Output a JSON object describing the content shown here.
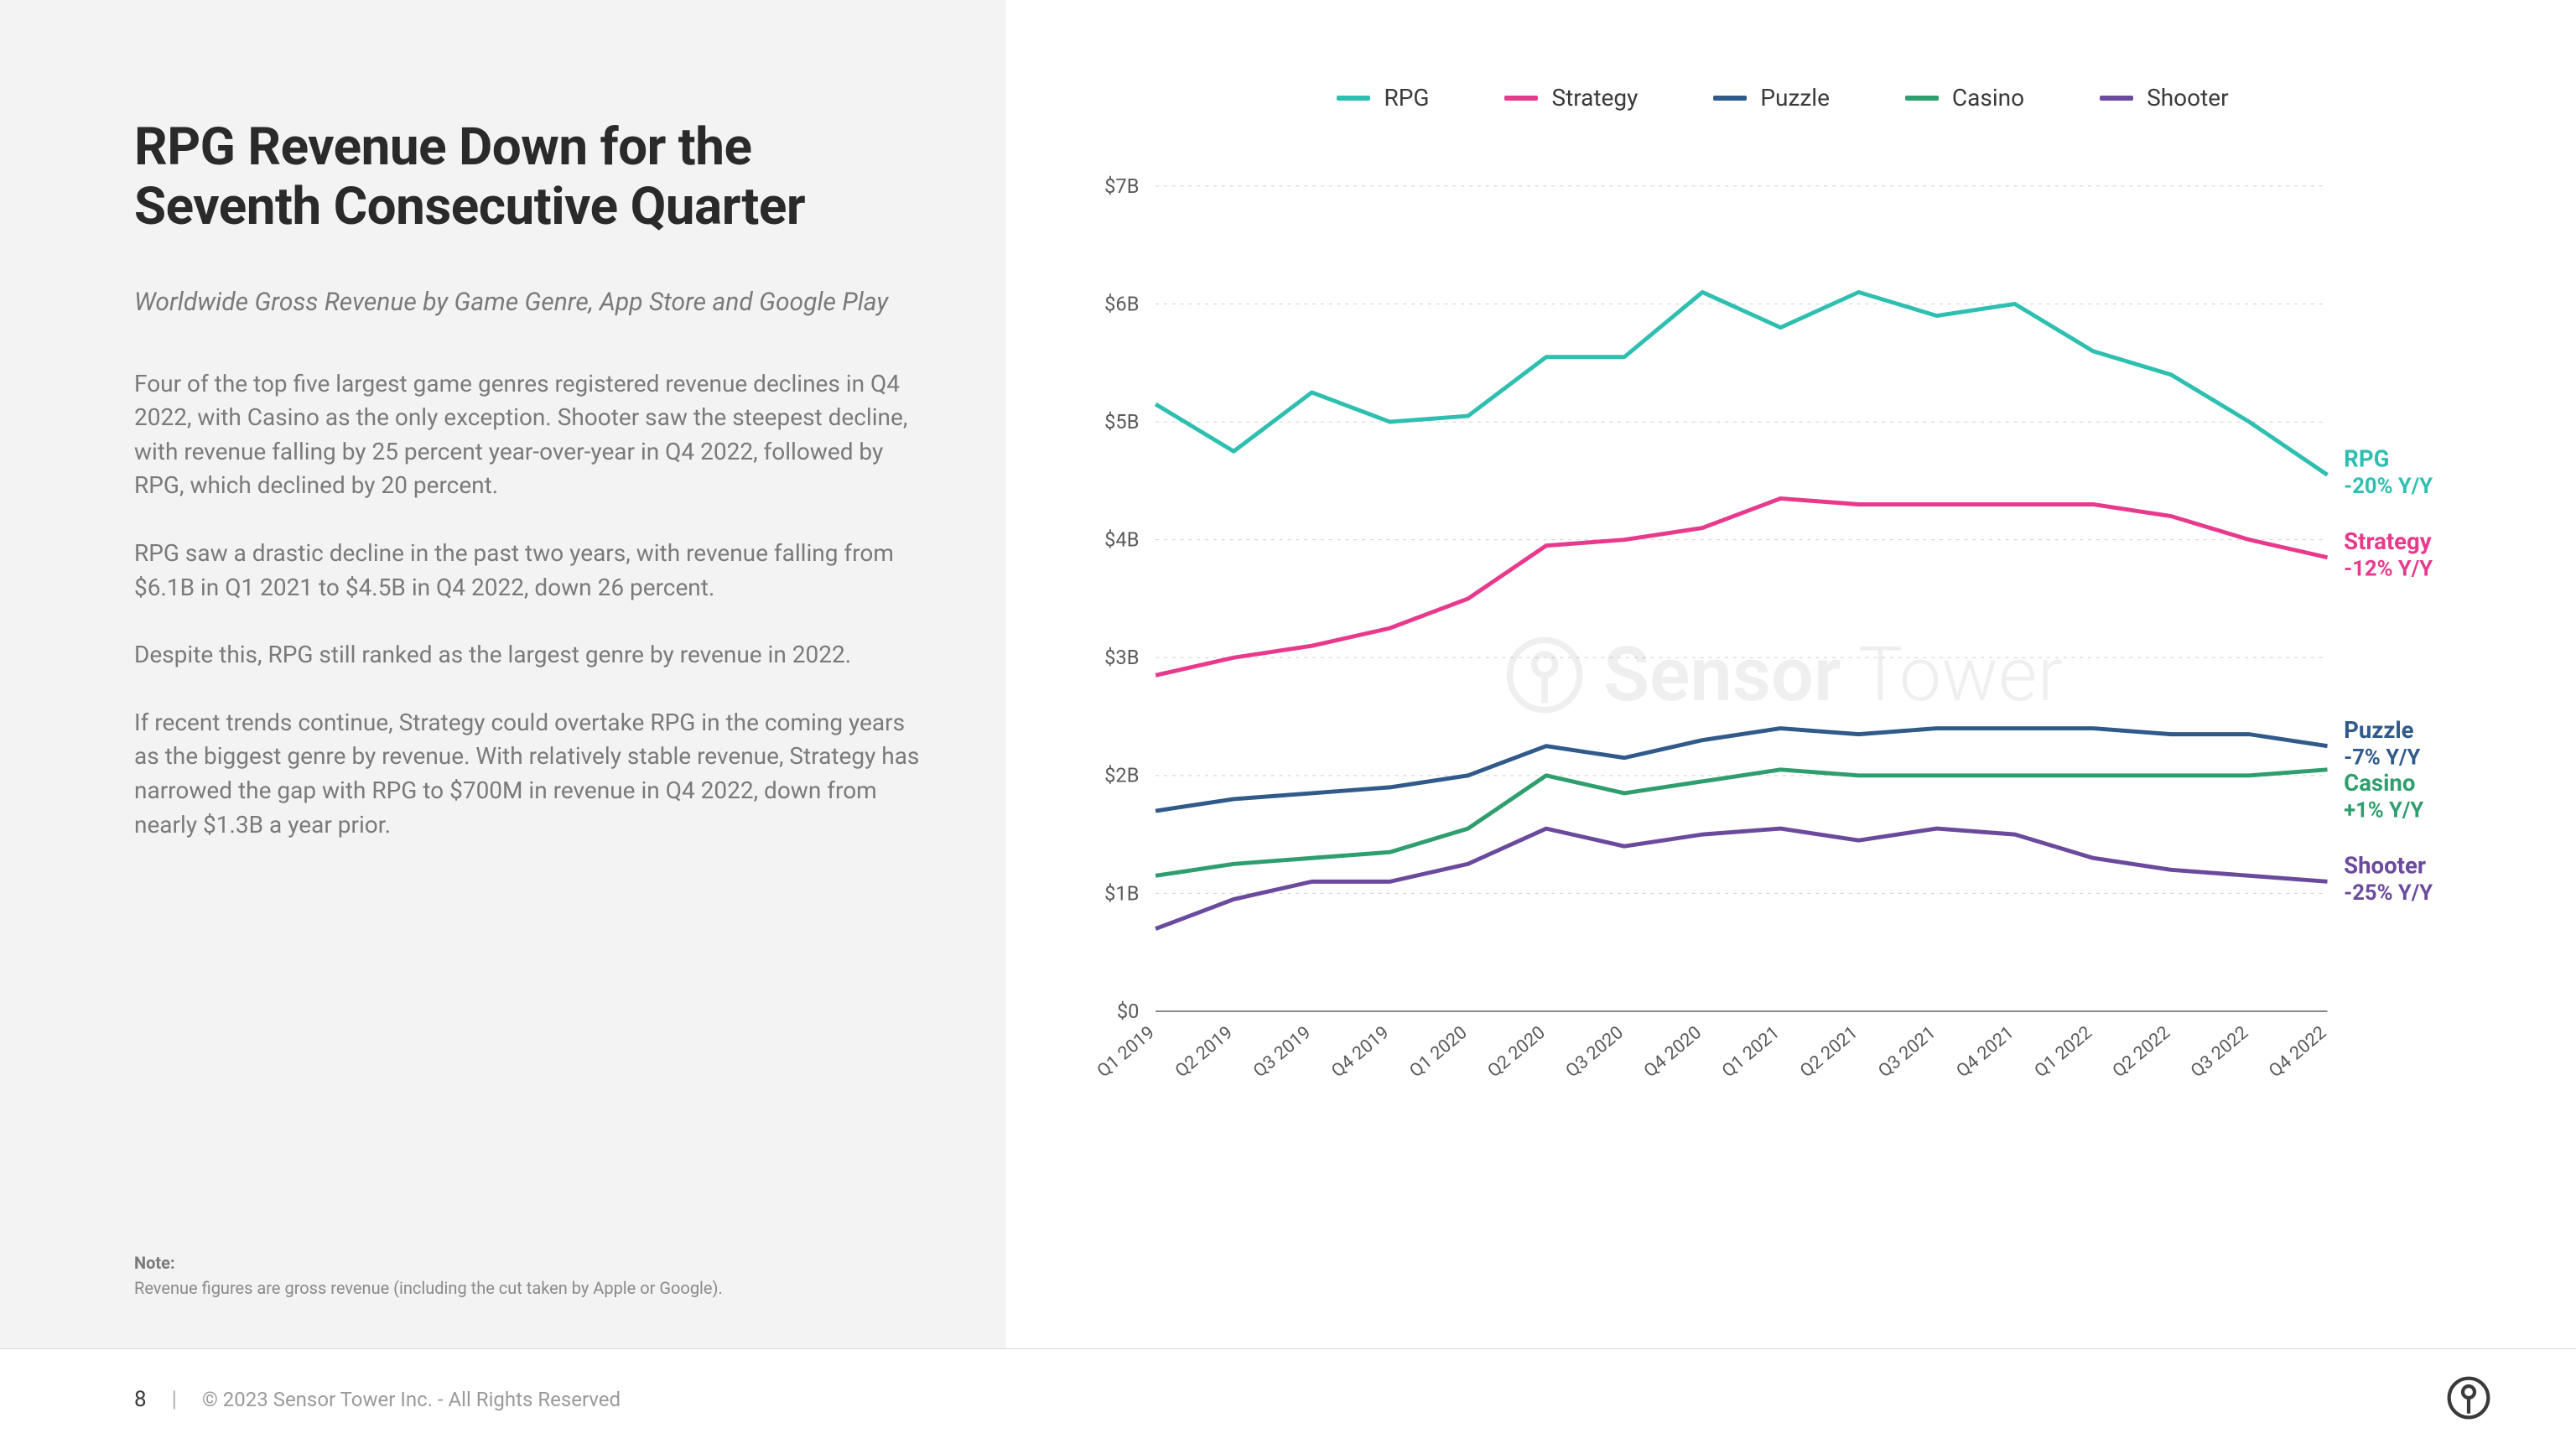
{
  "left": {
    "title": "RPG Revenue Down for the Seventh Consecutive Quarter",
    "subtitle": "Worldwide Gross Revenue by Game Genre, App Store and Google Play",
    "paragraphs": [
      "Four of the top five largest game genres registered revenue declines in Q4 2022, with Casino as the only exception. Shooter saw the steepest decline, with revenue falling by 25 percent year-over-year in Q4 2022, followed by RPG, which declined by 20 percent.",
      "RPG saw a drastic decline in the past two years, with revenue falling from $6.1B in Q1 2021 to $4.5B in Q4 2022, down 26 percent.",
      "Despite this, RPG still ranked as the largest genre by revenue in 2022.",
      "If recent trends continue, Strategy could overtake RPG in the coming years as the biggest genre by revenue. With relatively stable revenue, Strategy has narrowed the gap with RPG to $700M in revenue in Q4 2022, down from nearly $1.3B a year prior."
    ],
    "note_label": "Note:",
    "note_text": "Revenue figures are gross revenue (including the cut taken by Apple or Google)."
  },
  "footer": {
    "page": "8",
    "copyright": "© 2023 Sensor Tower Inc. - All Rights Reserved"
  },
  "chart": {
    "type": "line",
    "ylim": [
      0,
      7
    ],
    "ytick_step": 1,
    "y_prefix": "$",
    "y_suffix": "B",
    "y_zero_label": "$0",
    "background_color": "#ffffff",
    "grid_color": "#cfcfcf",
    "axis_color": "#8a8a8a",
    "label_fontsize": 24,
    "line_width": 5,
    "categories": [
      "Q1 2019",
      "Q2 2019",
      "Q3 2019",
      "Q4 2019",
      "Q1 2020",
      "Q2 2020",
      "Q3 2020",
      "Q4 2020",
      "Q1 2021",
      "Q2 2021",
      "Q3 2021",
      "Q4 2021",
      "Q1 2022",
      "Q2 2022",
      "Q3 2022",
      "Q4 2022"
    ],
    "series": [
      {
        "name": "RPG",
        "color": "#2fbfb0",
        "values": [
          5.15,
          4.75,
          5.25,
          5.0,
          5.05,
          5.55,
          5.55,
          6.1,
          5.8,
          6.1,
          5.9,
          6.0,
          5.6,
          5.4,
          5.0,
          4.55
        ],
        "end_label": "RPG",
        "end_sub": "-20% Y/Y"
      },
      {
        "name": "Strategy",
        "color": "#e83a8c",
        "values": [
          2.85,
          3.0,
          3.1,
          3.25,
          3.5,
          3.95,
          4.0,
          4.1,
          4.35,
          4.3,
          4.3,
          4.3,
          4.3,
          4.2,
          4.0,
          3.85
        ],
        "end_label": "Strategy",
        "end_sub": "-12% Y/Y"
      },
      {
        "name": "Puzzle",
        "color": "#2f5a8a",
        "values": [
          1.7,
          1.8,
          1.85,
          1.9,
          2.0,
          2.25,
          2.15,
          2.3,
          2.4,
          2.35,
          2.4,
          2.4,
          2.4,
          2.35,
          2.35,
          2.25
        ],
        "end_label": "Puzzle",
        "end_sub": "-7% Y/Y"
      },
      {
        "name": "Casino",
        "color": "#2f9e6e",
        "values": [
          1.15,
          1.25,
          1.3,
          1.35,
          1.55,
          2.0,
          1.85,
          1.95,
          2.05,
          2.0,
          2.0,
          2.0,
          2.0,
          2.0,
          2.0,
          2.05
        ],
        "end_label": "Casino",
        "end_sub": "+1% Y/Y"
      },
      {
        "name": "Shooter",
        "color": "#6b4a9e",
        "values": [
          0.7,
          0.95,
          1.1,
          1.1,
          1.25,
          1.55,
          1.4,
          1.5,
          1.55,
          1.45,
          1.55,
          1.5,
          1.3,
          1.2,
          1.15,
          1.1
        ],
        "end_label": "Shooter",
        "end_sub": "-25% Y/Y"
      }
    ],
    "legend_order": [
      "RPG",
      "Strategy",
      "Puzzle",
      "Casino",
      "Shooter"
    ],
    "watermark": {
      "sensor": "Sensor",
      "tower": "Tower"
    }
  }
}
